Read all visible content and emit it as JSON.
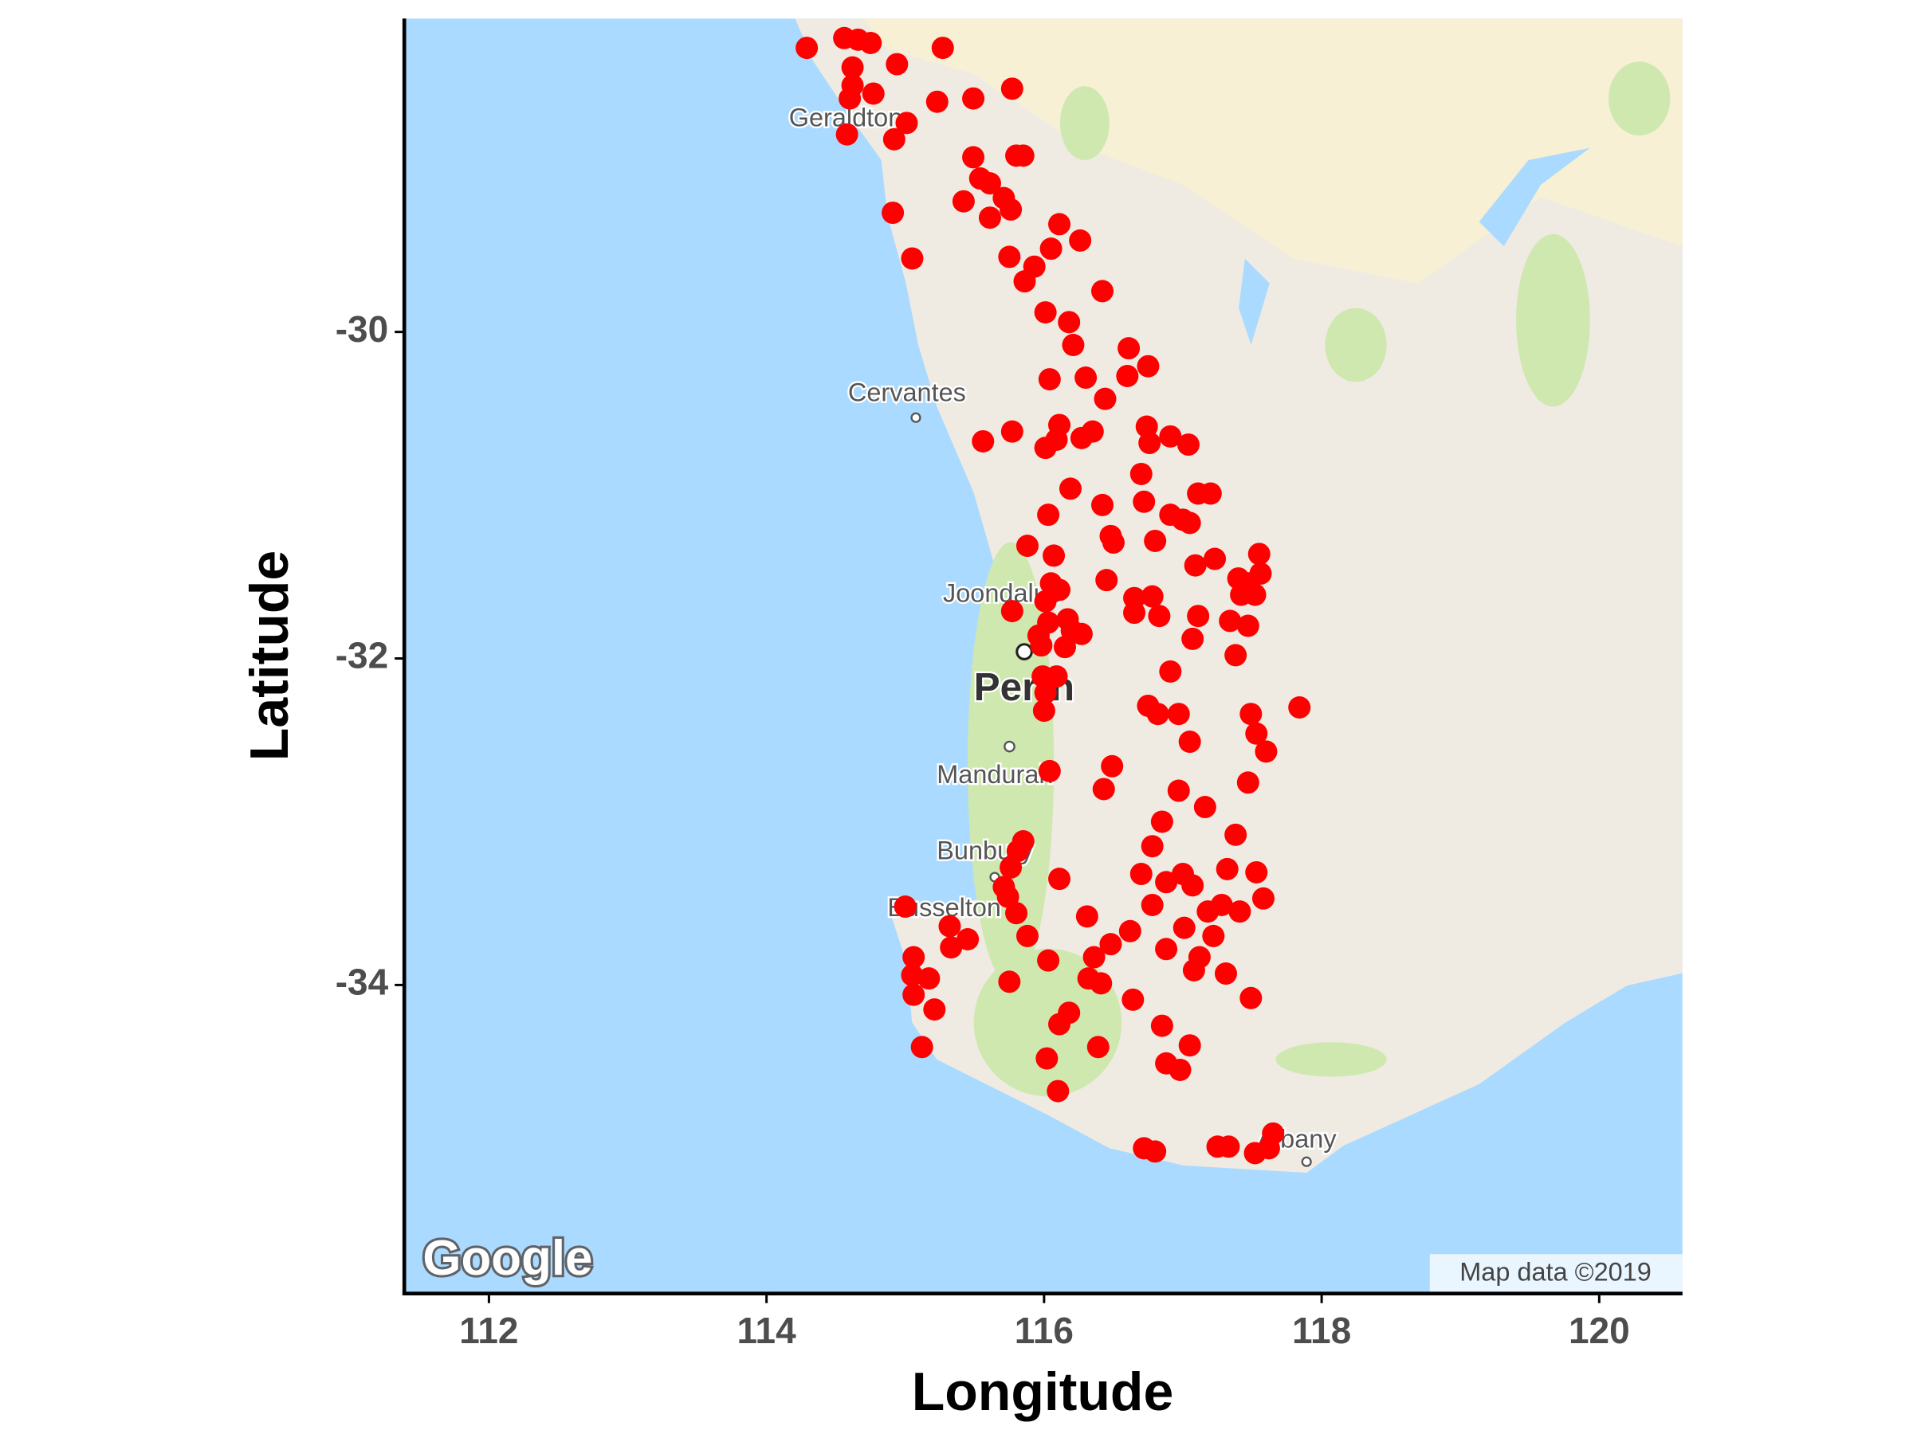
{
  "chart_data": {
    "type": "scatter",
    "x_label": "Longitude",
    "y_label": "Latitude",
    "color": "#ff0000",
    "xlim": [
      111.39,
      120.6
    ],
    "ylim": [
      -35.89,
      -28.08
    ],
    "xticks": [
      112,
      114,
      116,
      118,
      120
    ],
    "yticks": [
      -30,
      -32,
      -34
    ],
    "map_labels": [
      "Geraldton",
      "Cervantes",
      "Joondalup",
      "Perth",
      "Mandurah",
      "Bunbury",
      "Busselton",
      "Albany"
    ],
    "logo": "Google",
    "attribution": "Map data ©2019",
    "x": [
      114.29,
      114.56,
      114.66,
      114.75,
      115.27,
      114.94,
      114.62,
      114.62,
      114.6,
      114.77,
      115.23,
      115.49,
      115.77,
      115.01,
      114.58,
      114.92,
      115.49,
      115.8,
      115.85,
      115.54,
      115.61,
      115.42,
      115.71,
      115.76,
      115.61,
      114.91,
      116.11,
      116.26,
      116.05,
      115.05,
      115.75,
      115.93,
      115.86,
      116.42,
      116.01,
      116.18,
      116.21,
      116.61,
      116.75,
      116.04,
      116.3,
      116.6,
      116.44,
      115.77,
      115.56,
      116.11,
      116.09,
      116.01,
      116.35,
      116.27,
      116.74,
      116.76,
      116.91,
      117.04,
      116.7,
      116.19,
      117.11,
      117.2,
      116.42,
      116.72,
      116.91,
      117.0,
      117.05,
      116.03,
      115.88,
      116.07,
      116.48,
      116.5,
      116.8,
      117.55,
      117.09,
      117.23,
      117.4,
      117.56,
      117.47,
      117.42,
      117.52,
      116.45,
      116.05,
      116.11,
      116.01,
      116.65,
      116.78,
      115.77,
      116.65,
      116.83,
      117.11,
      117.34,
      117.47,
      116.03,
      116.17,
      115.96,
      116.2,
      116.27,
      116.15,
      115.98,
      117.07,
      117.38,
      116.91,
      115.99,
      116.09,
      116.01,
      116.75,
      116.82,
      116.97,
      117.49,
      117.84,
      116.0,
      117.53,
      117.05,
      117.6,
      116.49,
      116.04,
      116.43,
      116.97,
      117.47,
      117.16,
      116.85,
      117.38,
      115.85,
      116.78,
      115.81,
      115.76,
      116.11,
      116.7,
      116.88,
      117.0,
      117.07,
      117.32,
      117.53,
      115.71,
      115.74,
      115.0,
      115.8,
      116.31,
      116.78,
      117.18,
      117.28,
      117.41,
      117.58,
      115.32,
      115.45,
      115.33,
      115.88,
      116.62,
      116.48,
      117.01,
      117.22,
      116.36,
      116.03,
      116.88,
      117.12,
      115.06,
      117.08,
      115.05,
      115.17,
      115.75,
      116.32,
      116.41,
      117.31,
      115.06,
      116.64,
      117.49,
      115.21,
      116.18,
      116.11,
      116.85,
      117.05,
      115.12,
      116.39,
      116.02,
      116.88,
      116.98,
      116.1,
      116.72,
      116.8,
      117.25,
      117.33,
      117.52,
      117.62,
      117.65
    ],
    "y": [
      -28.26,
      -28.2,
      -28.21,
      -28.23,
      -28.26,
      -28.36,
      -28.38,
      -28.49,
      -28.57,
      -28.54,
      -28.59,
      -28.57,
      -28.51,
      -28.72,
      -28.79,
      -28.82,
      -28.93,
      -28.92,
      -28.92,
      -29.06,
      -29.09,
      -29.2,
      -29.18,
      -29.25,
      -29.3,
      -29.27,
      -29.34,
      -29.44,
      -29.49,
      -29.55,
      -29.54,
      -29.6,
      -29.69,
      -29.75,
      -29.88,
      -29.94,
      -30.08,
      -30.1,
      -30.21,
      -30.29,
      -30.28,
      -30.27,
      -30.41,
      -30.61,
      -30.67,
      -30.57,
      -30.66,
      -30.71,
      -30.61,
      -30.65,
      -30.58,
      -30.68,
      -30.64,
      -30.69,
      -30.87,
      -30.96,
      -30.99,
      -30.99,
      -31.06,
      -31.04,
      -31.12,
      -31.15,
      -31.17,
      -31.12,
      -31.31,
      -31.37,
      -31.25,
      -31.29,
      -31.28,
      -31.36,
      -31.43,
      -31.39,
      -31.51,
      -31.48,
      -31.54,
      -31.61,
      -31.61,
      -31.52,
      -31.54,
      -31.58,
      -31.65,
      -31.63,
      -31.62,
      -31.71,
      -31.72,
      -31.74,
      -31.74,
      -31.77,
      -31.8,
      -31.78,
      -31.76,
      -31.86,
      -31.83,
      -31.85,
      -31.93,
      -31.92,
      -31.88,
      -31.98,
      -32.08,
      -32.11,
      -32.11,
      -32.21,
      -32.29,
      -32.34,
      -32.34,
      -32.34,
      -32.3,
      -32.32,
      -32.46,
      -32.51,
      -32.57,
      -32.66,
      -32.69,
      -32.8,
      -32.81,
      -32.76,
      -32.91,
      -33.0,
      -33.08,
      -33.12,
      -33.15,
      -33.18,
      -33.28,
      -33.35,
      -33.32,
      -33.37,
      -33.32,
      -33.39,
      -33.29,
      -33.31,
      -33.4,
      -33.46,
      -33.52,
      -33.56,
      -33.58,
      -33.51,
      -33.55,
      -33.51,
      -33.55,
      -33.47,
      -33.64,
      -33.72,
      -33.77,
      -33.7,
      -33.67,
      -33.75,
      -33.65,
      -33.7,
      -33.83,
      -33.85,
      -33.78,
      -33.83,
      -33.83,
      -33.91,
      -33.94,
      -33.96,
      -33.98,
      -33.96,
      -33.99,
      -33.93,
      -34.06,
      -34.09,
      -34.08,
      -34.15,
      -34.17,
      -34.24,
      -34.25,
      -34.37,
      -34.38,
      -34.38,
      -34.45,
      -34.48,
      -34.52,
      -34.65,
      -35.0,
      -35.02,
      -34.99,
      -34.99,
      -35.03,
      -35.0,
      -34.91
    ]
  }
}
